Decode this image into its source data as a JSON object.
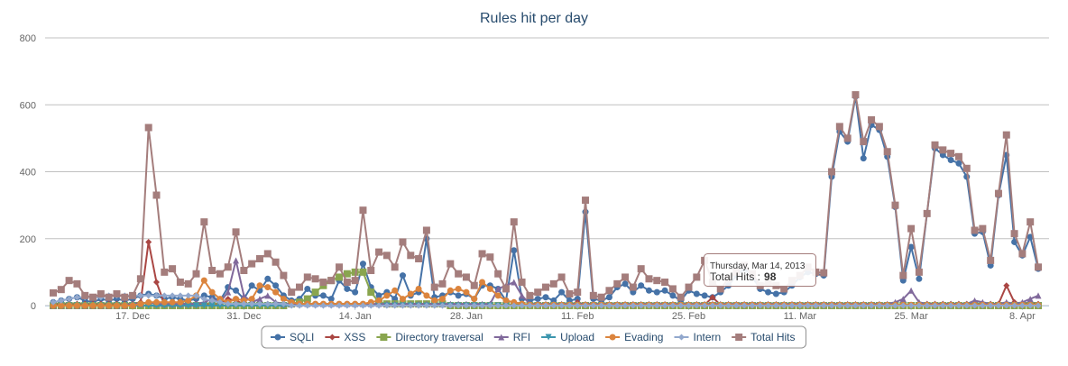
{
  "chart_data": {
    "type": "line",
    "title": "Rules hit per day",
    "x": [
      "2012-12-07",
      "2012-12-08",
      "2012-12-09",
      "2012-12-10",
      "2012-12-11",
      "2012-12-12",
      "2012-12-13",
      "2012-12-14",
      "2012-12-15",
      "2012-12-16",
      "2012-12-17",
      "2012-12-18",
      "2012-12-19",
      "2012-12-20",
      "2012-12-21",
      "2012-12-22",
      "2012-12-23",
      "2012-12-24",
      "2012-12-25",
      "2012-12-26",
      "2012-12-27",
      "2012-12-28",
      "2012-12-29",
      "2012-12-30",
      "2012-12-31",
      "2013-01-01",
      "2013-01-02",
      "2013-01-03",
      "2013-01-04",
      "2013-01-05",
      "2013-01-06",
      "2013-01-07",
      "2013-01-08",
      "2013-01-09",
      "2013-01-10",
      "2013-01-11",
      "2013-01-12",
      "2013-01-13",
      "2013-01-14",
      "2013-01-15",
      "2013-01-16",
      "2013-01-17",
      "2013-01-18",
      "2013-01-19",
      "2013-01-20",
      "2013-01-21",
      "2013-01-22",
      "2013-01-23",
      "2013-01-24",
      "2013-01-25",
      "2013-01-26",
      "2013-01-27",
      "2013-01-28",
      "2013-01-29",
      "2013-01-30",
      "2013-01-31",
      "2013-02-01",
      "2013-02-02",
      "2013-02-03",
      "2013-02-04",
      "2013-02-05",
      "2013-02-06",
      "2013-02-07",
      "2013-02-08",
      "2013-02-09",
      "2013-02-10",
      "2013-02-11",
      "2013-02-12",
      "2013-02-13",
      "2013-02-14",
      "2013-02-15",
      "2013-02-16",
      "2013-02-17",
      "2013-02-18",
      "2013-02-19",
      "2013-02-20",
      "2013-02-21",
      "2013-02-22",
      "2013-02-23",
      "2013-02-24",
      "2013-02-25",
      "2013-02-26",
      "2013-02-27",
      "2013-02-28",
      "2013-03-01",
      "2013-03-02",
      "2013-03-03",
      "2013-03-04",
      "2013-03-05",
      "2013-03-06",
      "2013-03-07",
      "2013-03-08",
      "2013-03-09",
      "2013-03-10",
      "2013-03-11",
      "2013-03-12",
      "2013-03-13",
      "2013-03-14",
      "2013-03-15",
      "2013-03-16",
      "2013-03-17",
      "2013-03-18",
      "2013-03-19",
      "2013-03-20",
      "2013-03-21",
      "2013-03-22",
      "2013-03-23",
      "2013-03-24",
      "2013-03-25",
      "2013-03-26",
      "2013-03-27",
      "2013-03-28",
      "2013-03-29",
      "2013-03-30",
      "2013-03-31",
      "2013-04-01",
      "2013-04-02",
      "2013-04-03",
      "2013-04-04",
      "2013-04-05",
      "2013-04-06",
      "2013-04-07",
      "2013-04-08",
      "2013-04-09",
      "2013-04-10"
    ],
    "xlim": [
      "2012-12-07",
      "2013-04-10"
    ],
    "xticks": [
      {
        "value": "2012-12-17",
        "label": "17. Dec"
      },
      {
        "value": "2012-12-31",
        "label": "31. Dec"
      },
      {
        "value": "2013-01-14",
        "label": "14. Jan"
      },
      {
        "value": "2013-01-28",
        "label": "28. Jan"
      },
      {
        "value": "2013-02-11",
        "label": "11. Feb"
      },
      {
        "value": "2013-02-25",
        "label": "25. Feb"
      },
      {
        "value": "2013-03-11",
        "label": "11. Mar"
      },
      {
        "value": "2013-03-25",
        "label": "25. Mar"
      },
      {
        "value": "2013-04-08",
        "label": "8. Apr"
      }
    ],
    "ylim": [
      0,
      800
    ],
    "yticks": [
      0,
      200,
      400,
      600,
      800
    ],
    "grid": true,
    "legend": "bottom",
    "series": [
      {
        "name": "SQLI",
        "color": "#4572A7",
        "marker": "circle",
        "values": [
          10,
          15,
          20,
          25,
          15,
          10,
          20,
          15,
          20,
          15,
          20,
          30,
          35,
          30,
          20,
          25,
          20,
          15,
          20,
          30,
          25,
          15,
          55,
          45,
          20,
          60,
          45,
          80,
          60,
          30,
          15,
          20,
          50,
          30,
          30,
          20,
          75,
          50,
          40,
          125,
          55,
          30,
          40,
          20,
          90,
          30,
          40,
          200,
          25,
          30,
          40,
          30,
          35,
          20,
          60,
          60,
          50,
          15,
          165,
          20,
          15,
          20,
          25,
          15,
          40,
          15,
          20,
          280,
          20,
          15,
          25,
          55,
          65,
          40,
          60,
          45,
          40,
          45,
          30,
          15,
          45,
          35,
          30,
          25,
          40,
          60,
          90,
          110,
          85,
          50,
          40,
          35,
          40,
          60,
          85,
          100,
          95,
          90,
          385,
          520,
          490,
          625,
          440,
          540,
          525,
          445,
          295,
          75,
          175,
          80,
          275,
          470,
          450,
          435,
          425,
          385,
          215,
          220,
          120,
          330,
          450,
          190,
          150,
          205,
          110
        ]
      },
      {
        "name": "XSS",
        "color": "#AA4643",
        "marker": "diamond",
        "values": [
          5,
          5,
          5,
          5,
          5,
          5,
          5,
          5,
          5,
          5,
          5,
          10,
          190,
          70,
          5,
          5,
          5,
          5,
          5,
          5,
          5,
          5,
          20,
          15,
          5,
          5,
          5,
          5,
          5,
          5,
          2,
          2,
          2,
          2,
          2,
          2,
          2,
          2,
          2,
          2,
          2,
          2,
          2,
          2,
          2,
          2,
          2,
          2,
          2,
          2,
          2,
          2,
          2,
          2,
          2,
          2,
          2,
          2,
          2,
          2,
          2,
          2,
          2,
          2,
          2,
          2,
          10,
          2,
          2,
          2,
          2,
          2,
          2,
          2,
          2,
          2,
          2,
          2,
          2,
          2,
          2,
          2,
          2,
          25,
          2,
          2,
          2,
          2,
          2,
          2,
          2,
          2,
          2,
          2,
          2,
          2,
          2,
          2,
          2,
          2,
          2,
          2,
          2,
          2,
          2,
          2,
          2,
          2,
          2,
          2,
          5,
          5,
          5,
          5,
          5,
          5,
          5,
          5,
          5,
          5,
          60,
          10,
          5,
          10,
          5
        ]
      },
      {
        "name": "Directory traversal",
        "color": "#89A54E",
        "marker": "square",
        "values": [
          0,
          0,
          0,
          0,
          0,
          0,
          0,
          0,
          0,
          0,
          0,
          0,
          0,
          0,
          0,
          0,
          0,
          0,
          0,
          0,
          0,
          0,
          0,
          0,
          0,
          0,
          0,
          0,
          0,
          0,
          5,
          10,
          20,
          40,
          60,
          75,
          85,
          95,
          100,
          100,
          40,
          10,
          5,
          5,
          5,
          5,
          5,
          5,
          5,
          5,
          0,
          0,
          0,
          0,
          0,
          0,
          0,
          0,
          0,
          0,
          0,
          0,
          0,
          0,
          0,
          0,
          0,
          0,
          0,
          0,
          0,
          0,
          0,
          0,
          0,
          0,
          0,
          0,
          0,
          0,
          0,
          0,
          0,
          0,
          0,
          0,
          0,
          0,
          0,
          0,
          0,
          0,
          0,
          0,
          0,
          0,
          0,
          0,
          0,
          0,
          0,
          0,
          0,
          0,
          0,
          0,
          0,
          0,
          0,
          0,
          0,
          0,
          0,
          0,
          0,
          0,
          0,
          0,
          0,
          0,
          0,
          0,
          0,
          0,
          0
        ]
      },
      {
        "name": "RFI",
        "color": "#80699B",
        "marker": "triangle",
        "values": [
          0,
          0,
          0,
          0,
          0,
          0,
          0,
          0,
          0,
          0,
          5,
          5,
          10,
          5,
          5,
          5,
          5,
          5,
          5,
          10,
          20,
          10,
          40,
          135,
          30,
          10,
          20,
          30,
          10,
          5,
          5,
          5,
          5,
          5,
          5,
          5,
          5,
          5,
          5,
          5,
          5,
          5,
          5,
          5,
          5,
          5,
          5,
          5,
          5,
          5,
          5,
          5,
          5,
          5,
          5,
          5,
          50,
          60,
          70,
          30,
          5,
          5,
          5,
          5,
          5,
          5,
          5,
          5,
          5,
          5,
          5,
          5,
          5,
          5,
          5,
          5,
          5,
          5,
          5,
          5,
          5,
          5,
          5,
          5,
          5,
          5,
          5,
          5,
          5,
          5,
          5,
          5,
          5,
          5,
          5,
          5,
          5,
          5,
          5,
          5,
          5,
          5,
          5,
          5,
          5,
          5,
          10,
          20,
          45,
          10,
          5,
          5,
          5,
          5,
          5,
          5,
          15,
          10,
          5,
          5,
          10,
          5,
          10,
          20,
          30
        ]
      },
      {
        "name": "Upload",
        "color": "#3D96AE",
        "marker": "triangle-down",
        "values": [
          0,
          0,
          0,
          0,
          0,
          0,
          0,
          0,
          0,
          0,
          0,
          0,
          0,
          0,
          0,
          0,
          0,
          0,
          0,
          0,
          0,
          0,
          0,
          0,
          0,
          0,
          0,
          0,
          0,
          0,
          0,
          0,
          0,
          0,
          0,
          0,
          0,
          0,
          0,
          0,
          0,
          0,
          0,
          0,
          0,
          0,
          0,
          0,
          0,
          0,
          0,
          0,
          0,
          0,
          0,
          0,
          0,
          0,
          0,
          0,
          0,
          0,
          0,
          0,
          0,
          0,
          0,
          0,
          0,
          0,
          0,
          0,
          0,
          0,
          0,
          0,
          0,
          0,
          0,
          0,
          0,
          0,
          0,
          0,
          0,
          0,
          0,
          0,
          0,
          0,
          0,
          0,
          0,
          0,
          0,
          0,
          0,
          0,
          0,
          0,
          0,
          0,
          0,
          0,
          0,
          0,
          0,
          0,
          0,
          0,
          0,
          0,
          0,
          0,
          0,
          0,
          0,
          0,
          0,
          0,
          0,
          0,
          0,
          0,
          0
        ]
      },
      {
        "name": "Evading",
        "color": "#DB843D",
        "marker": "circle",
        "values": [
          0,
          0,
          0,
          0,
          0,
          0,
          0,
          0,
          0,
          0,
          0,
          5,
          10,
          10,
          10,
          10,
          10,
          15,
          30,
          75,
          40,
          20,
          10,
          20,
          15,
          20,
          60,
          55,
          40,
          20,
          10,
          5,
          5,
          5,
          5,
          5,
          5,
          5,
          5,
          5,
          10,
          15,
          30,
          45,
          20,
          35,
          50,
          30,
          15,
          20,
          45,
          50,
          40,
          20,
          70,
          50,
          30,
          15,
          10,
          5,
          2,
          2,
          2,
          2,
          2,
          2,
          2,
          2,
          2,
          2,
          2,
          2,
          2,
          2,
          2,
          2,
          2,
          2,
          2,
          2,
          2,
          2,
          2,
          2,
          2,
          2,
          2,
          2,
          2,
          2,
          2,
          2,
          2,
          2,
          2,
          2,
          2,
          2,
          2,
          2,
          2,
          2,
          2,
          2,
          2,
          2,
          2,
          2,
          2,
          2,
          2,
          2,
          2,
          2,
          2,
          2,
          2,
          2,
          2,
          2,
          2,
          2,
          2,
          2,
          2
        ]
      },
      {
        "name": "Intern",
        "color": "#92A8CD",
        "marker": "diamond",
        "values": [
          10,
          15,
          20,
          25,
          25,
          25,
          25,
          30,
          30,
          30,
          30,
          30,
          30,
          30,
          30,
          30,
          30,
          30,
          30,
          20,
          15,
          10,
          5,
          5,
          5,
          5,
          5,
          5,
          5,
          5,
          0,
          0,
          0,
          0,
          0,
          0,
          0,
          0,
          0,
          0,
          0,
          0,
          0,
          0,
          0,
          0,
          0,
          0,
          0,
          0,
          0,
          0,
          0,
          0,
          0,
          0,
          0,
          0,
          0,
          0,
          0,
          0,
          0,
          0,
          0,
          0,
          0,
          0,
          0,
          0,
          0,
          0,
          0,
          0,
          0,
          0,
          0,
          0,
          0,
          0,
          0,
          0,
          0,
          0,
          0,
          0,
          0,
          0,
          0,
          0,
          0,
          0,
          0,
          0,
          0,
          0,
          0,
          0,
          0,
          0,
          0,
          0,
          0,
          0,
          0,
          0,
          0,
          0,
          0,
          0,
          0,
          0,
          0,
          0,
          0,
          0,
          0,
          0,
          0,
          0,
          0,
          0,
          0,
          0,
          0
        ]
      },
      {
        "name": "Total Hits",
        "color": "#A47D7C",
        "marker": "square",
        "values": [
          38,
          48,
          75,
          65,
          30,
          25,
          35,
          25,
          35,
          25,
          30,
          80,
          532,
          330,
          100,
          110,
          70,
          65,
          95,
          250,
          105,
          95,
          115,
          220,
          105,
          125,
          140,
          155,
          130,
          90,
          40,
          55,
          85,
          80,
          70,
          75,
          115,
          70,
          75,
          285,
          105,
          160,
          150,
          115,
          190,
          150,
          140,
          225,
          55,
          65,
          125,
          95,
          85,
          60,
          155,
          145,
          95,
          50,
          250,
          70,
          30,
          40,
          55,
          65,
          85,
          35,
          40,
          315,
          30,
          25,
          45,
          65,
          85,
          55,
          110,
          80,
          75,
          70,
          50,
          25,
          55,
          85,
          135,
          70,
          50,
          80,
          100,
          120,
          95,
          60,
          70,
          60,
          50,
          75,
          90,
          115,
          100,
          98,
          400,
          535,
          500,
          630,
          490,
          555,
          535,
          460,
          300,
          90,
          230,
          100,
          275,
          480,
          465,
          455,
          445,
          410,
          225,
          230,
          135,
          335,
          510,
          215,
          155,
          250,
          115
        ]
      }
    ],
    "tooltip": {
      "date": "Thursday, Mar 14, 2013",
      "label": "Total Hits :",
      "value": 98
    }
  }
}
